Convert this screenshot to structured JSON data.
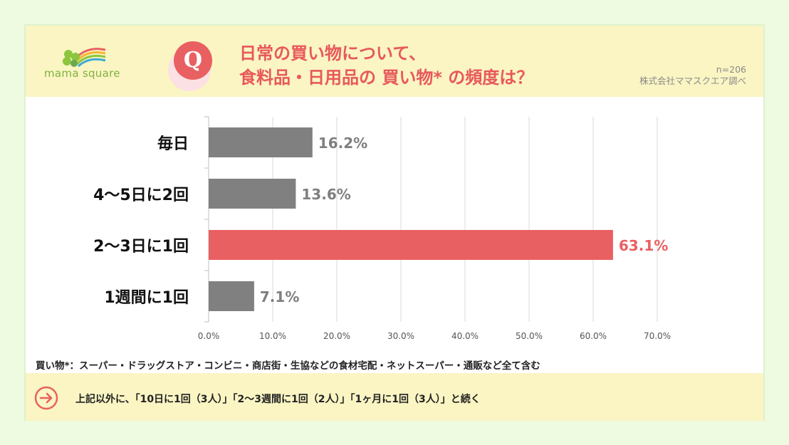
{
  "header": {
    "logo_text": "mama square",
    "q_label": "Q",
    "title_line1": "日常の買い物について、",
    "title_line2": "食料品・日用品の 買い物* の頻度は？",
    "sample_size": "n=206",
    "source": "株式会社ママスクエア調べ"
  },
  "colors": {
    "default_bar": "#808080",
    "highlight_bar": "#e96062",
    "header_bg": "#faf5c3",
    "page_bg": "#eefbe0"
  },
  "chart_data": {
    "type": "bar",
    "orientation": "horizontal",
    "categories": [
      "毎日",
      "4〜5日に2回",
      "2〜3日に1回",
      "1週間に1回"
    ],
    "values": [
      16.2,
      13.6,
      63.1,
      7.1
    ],
    "value_labels": [
      "16.2%",
      "13.6%",
      "63.1%",
      "7.1%"
    ],
    "highlight_index": 2,
    "xlim": [
      0,
      70
    ],
    "ticks": [
      0,
      10,
      20,
      30,
      40,
      50,
      60,
      70
    ],
    "tick_labels": [
      "0.0%",
      "10.0%",
      "20.0%",
      "30.0%",
      "40.0%",
      "50.0%",
      "60.0%",
      "70.0%"
    ],
    "grid": true
  },
  "footnote": "買い物*：スーパー・ドラッグストア・コンビニ・商店街・生協などの食材宅配・ネットスーパー・通販など全て含む",
  "footer": {
    "icon": "arrow-right-circle-icon",
    "text": "上記以外に、「10日に1回（3人）」「2〜3週間に1回（2人）」「1ヶ月に1回（3人）」と続く"
  }
}
